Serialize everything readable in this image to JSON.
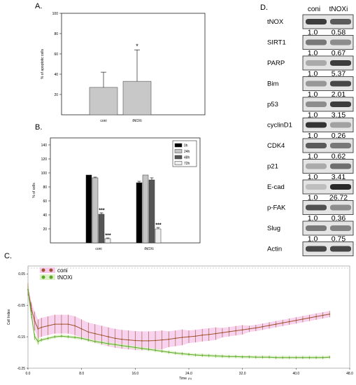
{
  "panels": {
    "a": "A.",
    "b": "B.",
    "c": "C.",
    "d": "D."
  },
  "chart_data": [
    {
      "id": "A",
      "type": "bar",
      "categories": [
        "coni",
        "tNOXi"
      ],
      "values": [
        27,
        33
      ],
      "errors": [
        15,
        31
      ],
      "significance": [
        "",
        "*"
      ],
      "ylabel": "% of apoptotic cells",
      "ylim": [
        0,
        100
      ],
      "yticks": [
        20,
        40,
        60,
        80,
        100
      ],
      "bar_color": "#c8c8c8"
    },
    {
      "id": "B",
      "type": "bar",
      "categories": [
        "coni",
        "tNOXi"
      ],
      "series": [
        {
          "name": "0h",
          "color": "#000000",
          "values": [
            97,
            86
          ],
          "errors": [
            0,
            2
          ]
        },
        {
          "name": "24h",
          "color": "#c4c4c4",
          "values": [
            93,
            97
          ],
          "errors": [
            1,
            0
          ]
        },
        {
          "name": "48h",
          "color": "#555555",
          "values": [
            41,
            90
          ],
          "errors": [
            2,
            3
          ]
        },
        {
          "name": "72h",
          "color": "#eeeeee",
          "values": [
            6,
            20
          ],
          "errors": [
            1,
            2
          ]
        }
      ],
      "significance": [
        [
          "",
          "",
          "***",
          "***"
        ],
        [
          "",
          "",
          "",
          "***"
        ]
      ],
      "ylabel": "% of cells",
      "ylim": [
        0,
        150
      ],
      "yticks": [
        20,
        40,
        60,
        80,
        100,
        120,
        140
      ],
      "legend_position": "top-right"
    },
    {
      "id": "C",
      "type": "line",
      "xlabel": "Time",
      "xunit": "(h)",
      "ylabel": "Cell Index",
      "xlim": [
        0,
        48
      ],
      "ylim": [
        -0.25,
        0.075
      ],
      "xticks": [
        "0.0",
        "8.0",
        "16.0",
        "24.0",
        "32.0",
        "40.0",
        "48.0"
      ],
      "xtick_values": [
        0,
        8,
        16,
        24,
        32,
        40,
        48
      ],
      "yticks": [
        "0.05",
        "-0.05",
        "-0.15",
        "-0.25"
      ],
      "ytick_values": [
        0.05,
        -0.05,
        -0.15,
        -0.25
      ],
      "legend_position": "top-left",
      "series": [
        {
          "name": "coni",
          "color": "#a0522d",
          "band_color": "#f6c8ec",
          "x": [
            0,
            0.5,
            1,
            1.5,
            2,
            3,
            4,
            5,
            6,
            7,
            8,
            9,
            10,
            11,
            12,
            13,
            14,
            15,
            16,
            17,
            18,
            19,
            20,
            21,
            22,
            23,
            24,
            25,
            26,
            27,
            28,
            29,
            30,
            31,
            32,
            33,
            34,
            35,
            36,
            37,
            38,
            39,
            40,
            41,
            42,
            43,
            44,
            45
          ],
          "y": [
            0.0,
            -0.06,
            -0.1,
            -0.125,
            -0.12,
            -0.115,
            -0.11,
            -0.11,
            -0.11,
            -0.115,
            -0.125,
            -0.135,
            -0.14,
            -0.145,
            -0.15,
            -0.155,
            -0.158,
            -0.16,
            -0.162,
            -0.163,
            -0.163,
            -0.162,
            -0.16,
            -0.158,
            -0.155,
            -0.152,
            -0.15,
            -0.148,
            -0.145,
            -0.143,
            -0.14,
            -0.137,
            -0.134,
            -0.131,
            -0.128,
            -0.125,
            -0.122,
            -0.118,
            -0.114,
            -0.11,
            -0.106,
            -0.102,
            -0.098,
            -0.094,
            -0.09,
            -0.086,
            -0.082,
            -0.078
          ],
          "err": [
            0.02,
            0.02,
            0.03,
            0.03,
            0.03,
            0.03,
            0.03,
            0.03,
            0.03,
            0.03,
            0.03,
            0.03,
            0.03,
            0.03,
            0.03,
            0.03,
            0.03,
            0.03,
            0.03,
            0.03,
            0.03,
            0.03,
            0.03,
            0.025,
            0.025,
            0.025,
            0.02,
            0.02,
            0.02,
            0.02,
            0.02,
            0.015,
            0.015,
            0.015,
            0.015,
            0.01,
            0.01,
            0.01,
            0.01,
            0.01,
            0.01,
            0.01,
            0.01,
            0.01,
            0.01,
            0.01,
            0.01,
            0.01
          ]
        },
        {
          "name": "tNOXi",
          "color": "#5aaa28",
          "band_color": "#dff0c8",
          "x": [
            0,
            0.5,
            1,
            1.5,
            2,
            3,
            4,
            5,
            6,
            7,
            8,
            9,
            10,
            11,
            12,
            13,
            14,
            15,
            16,
            17,
            18,
            19,
            20,
            21,
            22,
            23,
            24,
            25,
            26,
            27,
            28,
            29,
            30,
            31,
            32,
            33,
            34,
            35,
            36,
            37,
            38,
            39,
            40,
            41,
            42,
            43,
            44,
            45
          ],
          "y": [
            0.0,
            -0.08,
            -0.15,
            -0.165,
            -0.16,
            -0.155,
            -0.15,
            -0.148,
            -0.15,
            -0.152,
            -0.155,
            -0.16,
            -0.165,
            -0.168,
            -0.172,
            -0.175,
            -0.178,
            -0.181,
            -0.184,
            -0.187,
            -0.19,
            -0.193,
            -0.196,
            -0.199,
            -0.202,
            -0.204,
            -0.206,
            -0.208,
            -0.209,
            -0.21,
            -0.211,
            -0.212,
            -0.213,
            -0.213,
            -0.214,
            -0.214,
            -0.215,
            -0.215,
            -0.215,
            -0.216,
            -0.216,
            -0.216,
            -0.216,
            -0.216,
            -0.216,
            -0.216,
            -0.216,
            -0.215
          ],
          "err": [
            0.01,
            0.01,
            0.01,
            0.01,
            0.005,
            0.005,
            0.005,
            0.005,
            0.005,
            0.005,
            0.005,
            0.005,
            0.005,
            0.005,
            0.005,
            0.005,
            0.005,
            0.005,
            0.005,
            0.005,
            0.005,
            0.005,
            0.005,
            0.005,
            0.005,
            0.005,
            0.005,
            0.005,
            0.005,
            0.005,
            0.005,
            0.005,
            0.005,
            0.005,
            0.005,
            0.005,
            0.005,
            0.005,
            0.005,
            0.005,
            0.005,
            0.005,
            0.005,
            0.005,
            0.005,
            0.005,
            0.005,
            0.005
          ]
        }
      ]
    },
    {
      "id": "D",
      "type": "table",
      "columns": [
        "coni",
        "tNOXi"
      ],
      "rows": [
        {
          "label": "tNOX",
          "values": [
            "1.0",
            "0.58"
          ],
          "intensity": [
            0.85,
            0.7
          ]
        },
        {
          "label": "SIRT1",
          "values": [
            "1.0",
            "0.67"
          ],
          "intensity": [
            0.55,
            0.45
          ]
        },
        {
          "label": "PARP",
          "values": [
            "1.0",
            "5.37"
          ],
          "intensity": [
            0.3,
            0.85
          ]
        },
        {
          "label": "Bim",
          "values": [
            "1.0",
            "2.01"
          ],
          "intensity": [
            0.4,
            0.8
          ]
        },
        {
          "label": "p53",
          "values": [
            "1.0",
            "3.15"
          ],
          "intensity": [
            0.45,
            0.85
          ]
        },
        {
          "label": "cyclinD1",
          "values": [
            "1.0",
            "0.26"
          ],
          "intensity": [
            0.9,
            0.35
          ]
        },
        {
          "label": "CDK4",
          "values": [
            "1.0",
            "0.62"
          ],
          "intensity": [
            0.7,
            0.55
          ]
        },
        {
          "label": "p21",
          "values": [
            "1.0",
            "3.41"
          ],
          "intensity": [
            0.3,
            0.6
          ]
        },
        {
          "label": "E-cad",
          "values": [
            "1.0",
            "26.72"
          ],
          "intensity": [
            0.2,
            0.95
          ]
        },
        {
          "label": "p-FAK",
          "values": [
            "1.0",
            "0.36"
          ],
          "intensity": [
            0.75,
            0.45
          ]
        },
        {
          "label": "Slug",
          "values": [
            "1.0",
            "0.75"
          ],
          "intensity": [
            0.55,
            0.5
          ]
        },
        {
          "label": "Actin",
          "values": [],
          "intensity": [
            0.8,
            0.8
          ]
        }
      ]
    }
  ]
}
